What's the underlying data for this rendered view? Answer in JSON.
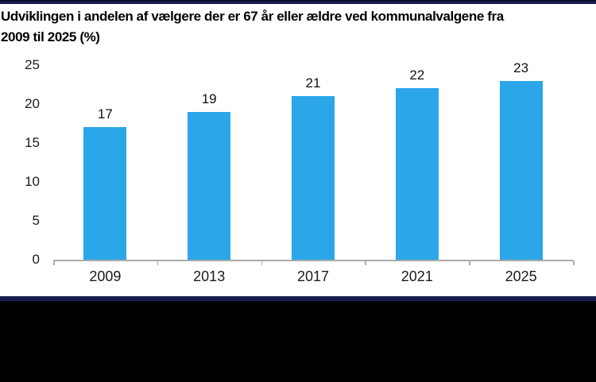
{
  "colors": {
    "bar": "#2BA6E9",
    "top_border": "#171C4F",
    "divider": "#171C4F",
    "footer_background": "#000000",
    "chart_background": "#FFFFFF",
    "axis": "#ABABAB",
    "title_text": "#000000",
    "label_text": "#1A1A1A"
  },
  "header": {
    "title_lines": [
      "Udviklingen i andelen af vælgere der er 67 år eller ældre ved kommunalvalgene fra",
      "2009 til 2025 (%)"
    ]
  },
  "chart_data": {
    "type": "bar",
    "title": "Udviklingen i andelen af vælgere der er 67 år eller ældre ved kommunalvalgene fra 2009 til 2025 (%)",
    "categories": [
      "2009",
      "2013",
      "2017",
      "2021",
      "2025"
    ],
    "values": [
      17,
      19,
      21,
      22,
      23
    ],
    "data_labels": true,
    "y_ticks": [
      0,
      5,
      10,
      15,
      20,
      25
    ],
    "ylim": [
      0,
      25
    ],
    "xlabel": "",
    "ylabel": "",
    "grid": false,
    "legend_position": "none"
  }
}
